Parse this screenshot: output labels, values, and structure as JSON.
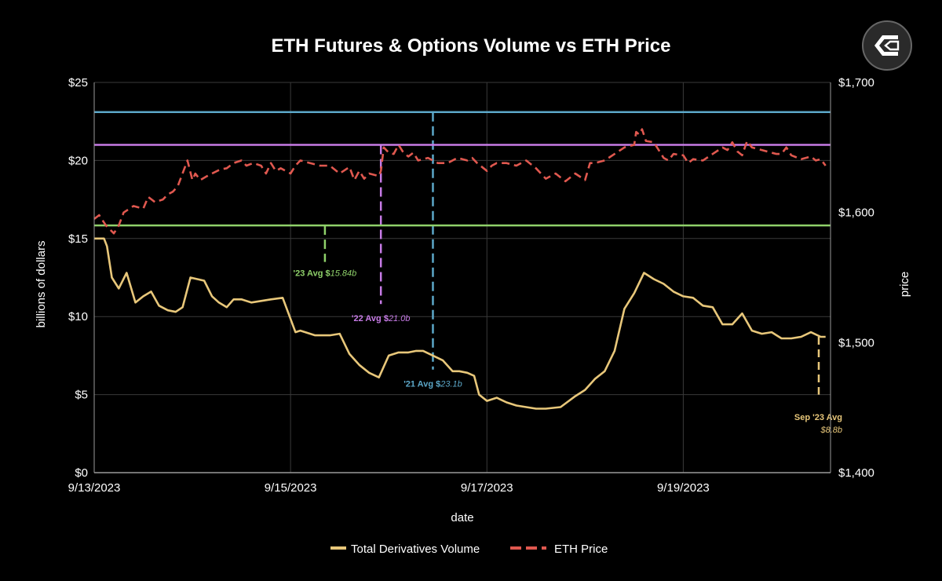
{
  "chart_data": {
    "type": "line",
    "title": "ETH Futures & Options Volume vs ETH Price",
    "xlabel": "date",
    "ylabel": "billions of dollars",
    "y2label": "price",
    "x_range": [
      0,
      7.5
    ],
    "x_ticks": [
      {
        "x": 0,
        "label": "9/13/2023"
      },
      {
        "x": 2,
        "label": "9/15/2023"
      },
      {
        "x": 4,
        "label": "9/17/2023"
      },
      {
        "x": 6,
        "label": "9/19/2023"
      }
    ],
    "ylim": [
      0,
      25
    ],
    "y_ticks": [
      {
        "v": 0,
        "label": "$0"
      },
      {
        "v": 5,
        "label": "$5"
      },
      {
        "v": 10,
        "label": "$10"
      },
      {
        "v": 15,
        "label": "$15"
      },
      {
        "v": 20,
        "label": "$20"
      },
      {
        "v": 25,
        "label": "$25"
      }
    ],
    "y2lim": [
      1400,
      1700
    ],
    "y2_ticks": [
      {
        "v": 1400,
        "label": "$1,400"
      },
      {
        "v": 1500,
        "label": "$1,500"
      },
      {
        "v": 1600,
        "label": "$1,600"
      },
      {
        "v": 1700,
        "label": "$1,700"
      }
    ],
    "grid": true,
    "legend": [
      {
        "name": "Total Derivatives Volume",
        "color": "#e8c77a",
        "style": "solid"
      },
      {
        "name": "ETH Price",
        "color": "#e0584f",
        "style": "dashed"
      }
    ],
    "series": [
      {
        "name": "Total Derivatives Volume",
        "axis": "left",
        "color": "#e8c77a",
        "x": [
          0,
          0.1,
          0.13,
          0.18,
          0.25,
          0.33,
          0.42,
          0.5,
          0.58,
          0.66,
          0.75,
          0.83,
          0.9,
          0.98,
          1.05,
          1.12,
          1.2,
          1.27,
          1.35,
          1.42,
          1.5,
          1.6,
          1.7,
          1.8,
          1.92,
          2.05,
          2.1,
          2.15,
          2.25,
          2.4,
          2.5,
          2.6,
          2.7,
          2.8,
          2.9,
          3.0,
          3.1,
          3.2,
          3.28,
          3.35,
          3.45,
          3.55,
          3.65,
          3.72,
          3.8,
          3.87,
          3.92,
          4.0,
          4.1,
          4.2,
          4.3,
          4.4,
          4.5,
          4.6,
          4.75,
          4.9,
          5.0,
          5.1,
          5.2,
          5.3,
          5.4,
          5.5,
          5.6,
          5.7,
          5.8,
          5.9,
          6.0,
          6.1,
          6.2,
          6.3,
          6.4,
          6.5,
          6.6,
          6.7,
          6.8,
          6.9,
          7.0,
          7.1,
          7.2,
          7.3,
          7.4,
          7.45
        ],
        "values": [
          15,
          15,
          14.5,
          12.5,
          11.8,
          12.8,
          10.9,
          11.3,
          11.6,
          10.7,
          10.4,
          10.3,
          10.6,
          12.5,
          12.4,
          12.3,
          11.3,
          10.9,
          10.6,
          11.1,
          11.1,
          10.9,
          11.0,
          11.1,
          11.2,
          9.0,
          9.1,
          9.0,
          8.8,
          8.8,
          8.9,
          7.6,
          6.9,
          6.4,
          6.1,
          7.5,
          7.7,
          7.7,
          7.8,
          7.8,
          7.5,
          7.2,
          6.5,
          6.5,
          6.4,
          6.2,
          5.0,
          4.6,
          4.8,
          4.5,
          4.3,
          4.2,
          4.1,
          4.1,
          4.2,
          4.9,
          5.3,
          6.0,
          6.5,
          7.8,
          10.5,
          11.5,
          12.8,
          12.4,
          12.1,
          11.6,
          11.3,
          11.2,
          10.7,
          10.6,
          9.5,
          9.5,
          10.2,
          9.1,
          8.9,
          9.0,
          8.6,
          8.6,
          8.7,
          9.0,
          8.7,
          8.7
        ]
      },
      {
        "name": "ETH Price",
        "axis": "right",
        "color": "#e0584f",
        "x": [
          0,
          0.05,
          0.12,
          0.2,
          0.25,
          0.3,
          0.4,
          0.5,
          0.55,
          0.62,
          0.7,
          0.75,
          0.8,
          0.85,
          0.95,
          1.0,
          1.03,
          1.08,
          1.15,
          1.2,
          1.28,
          1.35,
          1.42,
          1.5,
          1.55,
          1.62,
          1.7,
          1.75,
          1.8,
          1.85,
          1.9,
          2.0,
          2.05,
          2.1,
          2.2,
          2.3,
          2.4,
          2.5,
          2.6,
          2.65,
          2.7,
          2.75,
          2.8,
          2.9,
          2.92,
          2.95,
          3.0,
          3.05,
          3.1,
          3.15,
          3.2,
          3.25,
          3.3,
          3.4,
          3.5,
          3.6,
          3.7,
          3.8,
          3.85,
          3.9,
          4.0,
          4.05,
          4.1,
          4.2,
          4.3,
          4.4,
          4.5,
          4.6,
          4.7,
          4.8,
          4.9,
          5.0,
          5.05,
          5.1,
          5.2,
          5.3,
          5.4,
          5.5,
          5.52,
          5.55,
          5.58,
          5.62,
          5.7,
          5.75,
          5.8,
          5.85,
          5.9,
          6.0,
          6.05,
          6.1,
          6.2,
          6.3,
          6.4,
          6.45,
          6.5,
          6.55,
          6.6,
          6.65,
          6.7,
          6.8,
          6.9,
          6.95,
          7.0,
          7.05,
          7.1,
          7.2,
          7.3,
          7.35,
          7.4,
          7.45
        ],
        "values": [
          1595,
          1598,
          1590,
          1584,
          1590,
          1600,
          1605,
          1603,
          1612,
          1608,
          1610,
          1614,
          1616,
          1620,
          1640,
          1625,
          1630,
          1625,
          1628,
          1630,
          1633,
          1634,
          1638,
          1640,
          1636,
          1638,
          1636,
          1630,
          1638,
          1632,
          1634,
          1630,
          1636,
          1640,
          1638,
          1636,
          1636,
          1630,
          1635,
          1625,
          1632,
          1626,
          1630,
          1628,
          1632,
          1650,
          1646,
          1645,
          1652,
          1646,
          1643,
          1646,
          1640,
          1642,
          1638,
          1638,
          1642,
          1640,
          1642,
          1638,
          1632,
          1636,
          1638,
          1638,
          1636,
          1640,
          1634,
          1626,
          1630,
          1624,
          1630,
          1625,
          1638,
          1638,
          1640,
          1645,
          1650,
          1652,
          1662,
          1660,
          1664,
          1655,
          1654,
          1648,
          1642,
          1640,
          1645,
          1644,
          1638,
          1641,
          1640,
          1645,
          1650,
          1648,
          1654,
          1647,
          1644,
          1655,
          1650,
          1648,
          1646,
          1645,
          1645,
          1650,
          1644,
          1641,
          1643,
          1640,
          1641,
          1636
        ]
      }
    ],
    "reference_lines": [
      {
        "name": "'21 Avg",
        "axis": "left",
        "value": 23.1,
        "color": "#5ca8c9",
        "label": "'21 Avg $",
        "value_label": "23.1b",
        "drop_x": 3.45,
        "drop_to": 6.6,
        "label_x": 3.45,
        "label_y": 5.5
      },
      {
        "name": "'22 Avg",
        "axis": "left",
        "value": 21.0,
        "color": "#c77be6",
        "label": "'22 Avg $",
        "value_label": "21.0b",
        "drop_x": 2.92,
        "drop_to": 10.8,
        "label_x": 2.92,
        "label_y": 9.7
      },
      {
        "name": "'23 Avg",
        "axis": "left",
        "value": 15.84,
        "color": "#8fd16a",
        "label": "'23 Avg $",
        "value_label": "15.84b",
        "drop_x": 2.35,
        "drop_to": 13.5,
        "label_x": 2.35,
        "label_y": 12.6
      }
    ],
    "sep_avg": {
      "label": "Sep '23 Avg",
      "value_label": "$8.8b",
      "color": "#e8c77a",
      "x": 7.38,
      "from": 8.7,
      "to": 5.0
    }
  }
}
